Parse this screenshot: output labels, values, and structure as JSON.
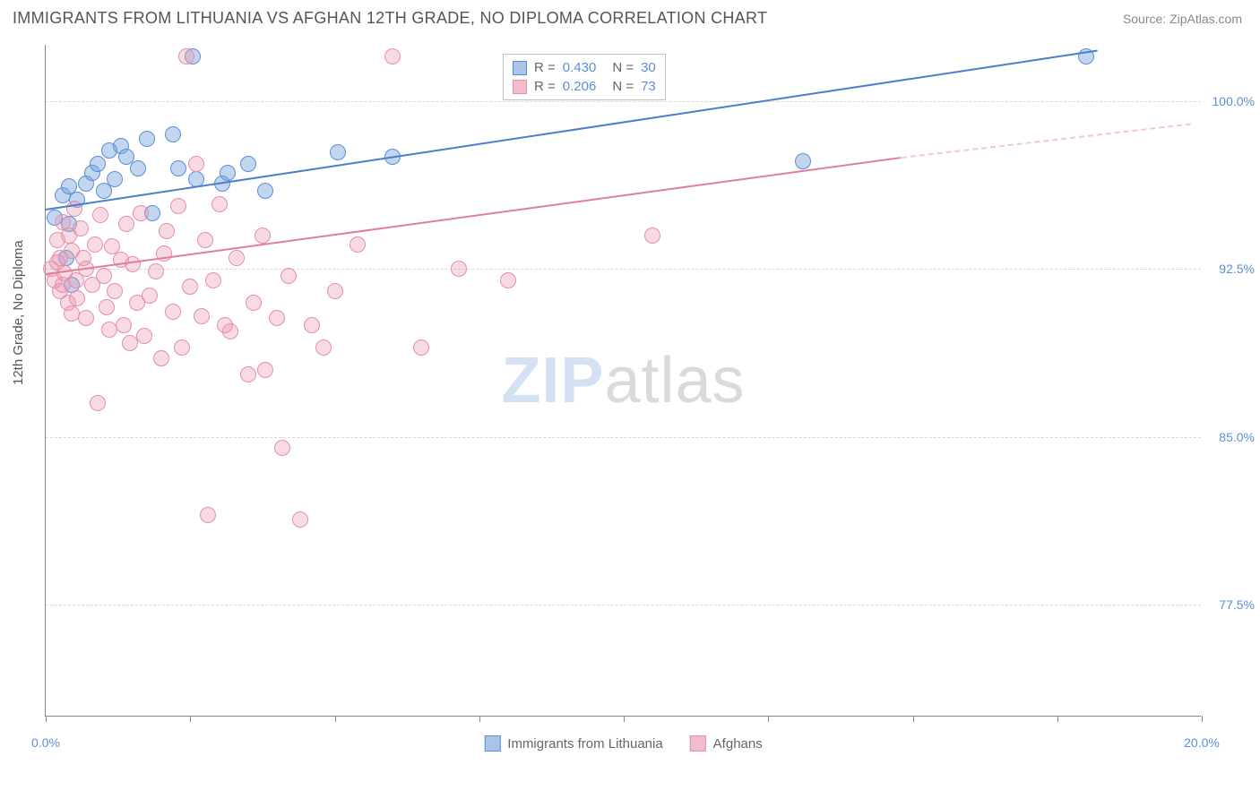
{
  "title": "IMMIGRANTS FROM LITHUANIA VS AFGHAN 12TH GRADE, NO DIPLOMA CORRELATION CHART",
  "source": "Source: ZipAtlas.com",
  "y_axis_label": "12th Grade, No Diploma",
  "watermark": {
    "zip": "ZIP",
    "atlas": "atlas"
  },
  "chart": {
    "type": "scatter",
    "background_color": "#ffffff",
    "grid_color": "#d8d8d8",
    "axis_color": "#888888",
    "xlim": [
      0,
      20
    ],
    "ylim": [
      72.5,
      102.5
    ],
    "x_ticks": [
      0,
      2.5,
      5,
      7.5,
      10,
      12.5,
      15,
      17.5,
      20
    ],
    "x_tick_labels": {
      "0": "0.0%",
      "20": "20.0%"
    },
    "y_ticks": [
      77.5,
      85.0,
      92.5,
      100.0
    ],
    "y_tick_labels": [
      "77.5%",
      "85.0%",
      "92.5%",
      "100.0%"
    ],
    "series": [
      {
        "name": "Immigrants from Lithuania",
        "color_fill": "rgba(120, 165, 220, 0.45)",
        "color_border": "#5b8fd6",
        "swatch_fill": "#a9c4e6",
        "trend_color": "#4a7fc9",
        "r": "0.430",
        "n": "30",
        "trend": {
          "x1": 0,
          "y1": 95.2,
          "x2": 18.2,
          "y2": 102.3
        },
        "points": [
          [
            0.15,
            94.8
          ],
          [
            0.3,
            95.8
          ],
          [
            0.35,
            93.0
          ],
          [
            0.4,
            94.5
          ],
          [
            0.4,
            96.2
          ],
          [
            0.55,
            95.6
          ],
          [
            0.45,
            91.8
          ],
          [
            0.7,
            96.3
          ],
          [
            0.8,
            96.8
          ],
          [
            0.9,
            97.2
          ],
          [
            1.0,
            96.0
          ],
          [
            1.1,
            97.8
          ],
          [
            1.2,
            96.5
          ],
          [
            1.3,
            98.0
          ],
          [
            1.4,
            97.5
          ],
          [
            1.6,
            97.0
          ],
          [
            1.75,
            98.3
          ],
          [
            1.85,
            95.0
          ],
          [
            2.2,
            98.5
          ],
          [
            2.3,
            97.0
          ],
          [
            2.55,
            102.0
          ],
          [
            2.6,
            96.5
          ],
          [
            3.05,
            96.3
          ],
          [
            3.15,
            96.8
          ],
          [
            3.5,
            97.2
          ],
          [
            3.8,
            96.0
          ],
          [
            5.05,
            97.7
          ],
          [
            6.0,
            97.5
          ],
          [
            13.1,
            97.3
          ],
          [
            18.0,
            102.0
          ]
        ]
      },
      {
        "name": "Afghans",
        "color_fill": "rgba(235, 150, 175, 0.35)",
        "color_border": "#e58fab",
        "swatch_fill": "#f3bccc",
        "trend_color": "#e07d9e",
        "r": "0.206",
        "n": "73",
        "trend": {
          "x1": 0,
          "y1": 92.3,
          "x2": 14.8,
          "y2": 97.5
        },
        "trend_dashed": {
          "x1": 14.8,
          "y1": 97.5,
          "x2": 19.8,
          "y2": 99.0
        },
        "points": [
          [
            0.1,
            92.5
          ],
          [
            0.15,
            92.0
          ],
          [
            0.2,
            93.8
          ],
          [
            0.2,
            92.8
          ],
          [
            0.25,
            91.5
          ],
          [
            0.25,
            93.0
          ],
          [
            0.3,
            91.8
          ],
          [
            0.3,
            94.6
          ],
          [
            0.32,
            92.3
          ],
          [
            0.38,
            91.0
          ],
          [
            0.4,
            94.0
          ],
          [
            0.45,
            93.3
          ],
          [
            0.45,
            90.5
          ],
          [
            0.5,
            95.2
          ],
          [
            0.52,
            92.0
          ],
          [
            0.55,
            91.2
          ],
          [
            0.6,
            94.3
          ],
          [
            0.65,
            93.0
          ],
          [
            0.7,
            92.5
          ],
          [
            0.7,
            90.3
          ],
          [
            0.8,
            91.8
          ],
          [
            0.85,
            93.6
          ],
          [
            0.9,
            86.5
          ],
          [
            0.95,
            94.9
          ],
          [
            1.0,
            92.2
          ],
          [
            1.05,
            90.8
          ],
          [
            1.1,
            89.8
          ],
          [
            1.15,
            93.5
          ],
          [
            1.2,
            91.5
          ],
          [
            1.3,
            92.9
          ],
          [
            1.35,
            90.0
          ],
          [
            1.4,
            94.5
          ],
          [
            1.45,
            89.2
          ],
          [
            1.5,
            92.7
          ],
          [
            1.58,
            91.0
          ],
          [
            1.65,
            95.0
          ],
          [
            1.7,
            89.5
          ],
          [
            1.8,
            91.3
          ],
          [
            1.9,
            92.4
          ],
          [
            2.0,
            88.5
          ],
          [
            2.05,
            93.2
          ],
          [
            2.1,
            94.2
          ],
          [
            2.2,
            90.6
          ],
          [
            2.3,
            95.3
          ],
          [
            2.35,
            89.0
          ],
          [
            2.44,
            102.0
          ],
          [
            2.5,
            91.7
          ],
          [
            2.6,
            97.2
          ],
          [
            2.7,
            90.4
          ],
          [
            2.76,
            93.8
          ],
          [
            2.8,
            81.5
          ],
          [
            2.9,
            92.0
          ],
          [
            3.0,
            95.4
          ],
          [
            3.1,
            90.0
          ],
          [
            3.2,
            89.7
          ],
          [
            3.3,
            93.0
          ],
          [
            3.5,
            87.8
          ],
          [
            3.6,
            91.0
          ],
          [
            3.75,
            94.0
          ],
          [
            3.8,
            88.0
          ],
          [
            4.0,
            90.3
          ],
          [
            4.1,
            84.5
          ],
          [
            4.2,
            92.2
          ],
          [
            4.4,
            81.3
          ],
          [
            4.6,
            90.0
          ],
          [
            4.8,
            89.0
          ],
          [
            5.0,
            91.5
          ],
          [
            5.4,
            93.6
          ],
          [
            6.0,
            102.0
          ],
          [
            6.5,
            89.0
          ],
          [
            7.15,
            92.5
          ],
          [
            8.0,
            92.0
          ],
          [
            10.5,
            94.0
          ]
        ]
      }
    ]
  },
  "legend": {
    "series1_label": "Immigrants from Lithuania",
    "series2_label": "Afghans"
  }
}
